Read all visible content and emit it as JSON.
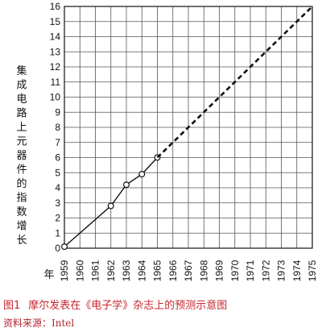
{
  "chart_data": {
    "type": "line",
    "xlabel": "年",
    "ylabel": "集成电路上元器件的指数增长",
    "x_ticks": [
      "1959",
      "1960",
      "1961",
      "1962",
      "1963",
      "1964",
      "1965",
      "1966",
      "1967",
      "1968",
      "1969",
      "1970",
      "1971",
      "1972",
      "1973",
      "1974",
      "1975"
    ],
    "y_ticks": [
      0,
      1,
      2,
      3,
      4,
      5,
      6,
      7,
      8,
      9,
      10,
      11,
      12,
      13,
      14,
      15,
      16
    ],
    "xlim": [
      1959,
      1975
    ],
    "ylim": [
      0,
      16
    ],
    "grid": true,
    "series": [
      {
        "style": "solid-markers",
        "x": [
          1959,
          1962,
          1963,
          1964,
          1965
        ],
        "y": [
          0.1,
          2.8,
          4.2,
          4.9,
          6.0
        ]
      },
      {
        "style": "dashed",
        "x": [
          1965,
          1975
        ],
        "y": [
          6.0,
          16
        ]
      }
    ]
  },
  "caption": {
    "figure_number": "图1",
    "text": "摩尔发表在《电子学》杂志上的预测示意图"
  },
  "source": "资料来源：Intel"
}
